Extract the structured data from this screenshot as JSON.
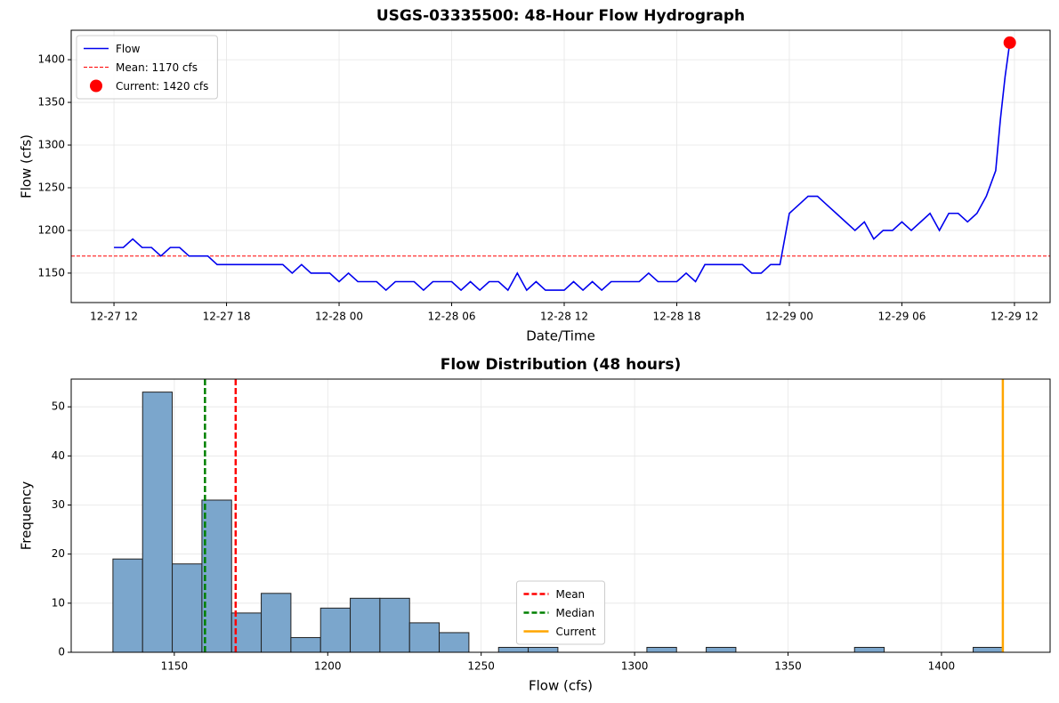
{
  "chart_data": [
    {
      "type": "line",
      "title": "USGS-03335500: 48-Hour Flow Hydrograph",
      "xlabel": "Date/Time",
      "ylabel": "Flow (cfs)",
      "x": [
        0,
        0.5,
        1,
        1.5,
        2,
        2.5,
        3,
        3.5,
        4,
        4.5,
        5,
        5.5,
        6,
        6.5,
        7,
        7.5,
        8,
        8.5,
        9,
        9.5,
        10,
        10.5,
        11,
        11.5,
        12,
        12.5,
        13,
        13.5,
        14,
        14.5,
        15,
        15.5,
        16,
        16.5,
        17,
        17.5,
        18,
        18.5,
        19,
        19.5,
        20,
        20.5,
        21,
        21.5,
        22,
        22.5,
        23,
        23.5,
        24,
        24.5,
        25,
        25.5,
        26,
        26.5,
        27,
        27.5,
        28,
        28.5,
        29,
        29.5,
        30,
        30.5,
        31,
        31.5,
        32,
        32.5,
        33,
        33.5,
        34,
        34.5,
        35,
        35.5,
        36,
        36.5,
        37,
        37.5,
        38,
        38.5,
        39,
        39.5,
        40,
        40.5,
        41,
        41.5,
        42,
        42.5,
        43,
        43.5,
        44,
        44.5,
        45,
        45.5,
        46,
        46.5,
        47,
        47.25,
        47.5,
        47.75
      ],
      "series": [
        {
          "name": "Flow",
          "color": "#0000ee",
          "values": [
            1180,
            1180,
            1190,
            1180,
            1180,
            1170,
            1180,
            1180,
            1170,
            1170,
            1170,
            1160,
            1160,
            1160,
            1160,
            1160,
            1160,
            1160,
            1160,
            1150,
            1160,
            1150,
            1150,
            1150,
            1140,
            1150,
            1140,
            1140,
            1140,
            1130,
            1140,
            1140,
            1140,
            1130,
            1140,
            1140,
            1140,
            1130,
            1140,
            1130,
            1140,
            1140,
            1130,
            1150,
            1130,
            1140,
            1130,
            1130,
            1130,
            1140,
            1130,
            1140,
            1130,
            1140,
            1140,
            1140,
            1140,
            1150,
            1140,
            1140,
            1140,
            1150,
            1140,
            1160,
            1160,
            1160,
            1160,
            1160,
            1150,
            1150,
            1160,
            1160,
            1220,
            1230,
            1240,
            1240,
            1230,
            1220,
            1210,
            1200,
            1210,
            1190,
            1200,
            1200,
            1210,
            1200,
            1210,
            1220,
            1200,
            1220,
            1220,
            1210,
            1220,
            1240,
            1270,
            1330,
            1380,
            1420
          ]
        }
      ],
      "hlines": [
        {
          "name": "Mean: 1170 cfs",
          "value": 1170,
          "color": "#ff0000",
          "style": "dashed"
        }
      ],
      "points": [
        {
          "name": "Current: 1420 cfs",
          "x": 47.75,
          "y": 1420,
          "color": "#ff0000"
        }
      ],
      "xlim": [
        -2.28,
        49.9
      ],
      "ylim": [
        1115.5,
        1434.5
      ],
      "xticks": [
        {
          "value": 0,
          "label": "12-27 12"
        },
        {
          "value": 6,
          "label": "12-27 18"
        },
        {
          "value": 12,
          "label": "12-28 00"
        },
        {
          "value": 18,
          "label": "12-28 06"
        },
        {
          "value": 24,
          "label": "12-28 12"
        },
        {
          "value": 30,
          "label": "12-28 18"
        },
        {
          "value": 36,
          "label": "12-29 00"
        },
        {
          "value": 42,
          "label": "12-29 06"
        },
        {
          "value": 48,
          "label": "12-29 12"
        }
      ],
      "yticks": [
        1150,
        1200,
        1250,
        1300,
        1350,
        1400
      ],
      "grid": true,
      "legend": "upper left"
    },
    {
      "type": "histogram",
      "title": "Flow Distribution (48 hours)",
      "xlabel": "Flow (cfs)",
      "ylabel": "Frequency",
      "color": "#7ba6cc",
      "bins": [
        1130,
        1139.67,
        1149.33,
        1159,
        1168.67,
        1178.33,
        1188,
        1197.67,
        1207.33,
        1217,
        1226.67,
        1236.33,
        1246,
        1255.67,
        1265.33,
        1275,
        1284.67,
        1294.33,
        1304,
        1313.67,
        1323.33,
        1333,
        1342.67,
        1352.33,
        1362,
        1371.67,
        1381.33,
        1391,
        1400.67,
        1410.33,
        1420
      ],
      "values": [
        19,
        53,
        18,
        31,
        8,
        12,
        3,
        9,
        11,
        11,
        6,
        4,
        0,
        1,
        1,
        0,
        0,
        0,
        1,
        0,
        1,
        0,
        0,
        0,
        0,
        1,
        0,
        0,
        0,
        1
      ],
      "vlines": [
        {
          "name": "Mean",
          "value": 1170,
          "color": "#ff0000",
          "style": "dashed"
        },
        {
          "name": "Median",
          "value": 1160,
          "color": "#008000",
          "style": "dashed"
        },
        {
          "name": "Current",
          "value": 1420,
          "color": "#ffa500",
          "style": "solid"
        }
      ],
      "xlim": [
        1116.4,
        1435.4
      ],
      "ylim": [
        0,
        55.65
      ],
      "xticks": [
        1150,
        1200,
        1250,
        1300,
        1350,
        1400
      ],
      "yticks": [
        0,
        10,
        20,
        30,
        40,
        50
      ],
      "grid": true,
      "legend": "lower center"
    }
  ]
}
